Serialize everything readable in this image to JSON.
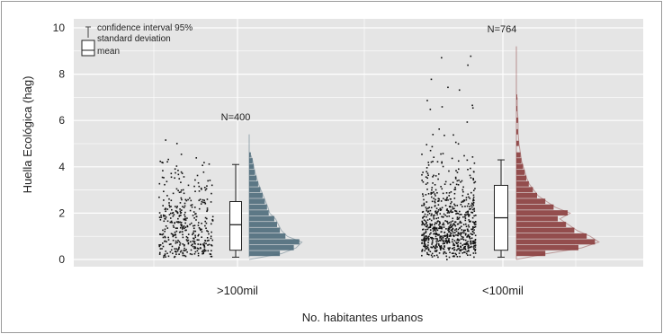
{
  "chart_data": {
    "type": "scatter",
    "xlabel": "No. habitantes urbanos",
    "ylabel": "Huella Ecológica (hag)",
    "ylim": [
      0,
      10
    ],
    "yticks": [
      0,
      2,
      4,
      6,
      8,
      10
    ],
    "grid": true,
    "legend": {
      "placement": "top-left",
      "items": [
        "confidence interval 95%",
        "standard deviation",
        "mean"
      ]
    },
    "categories": [
      ">100mil",
      "<100mil"
    ],
    "groups": [
      {
        "category": ">100mil",
        "n_label": "N=400",
        "color": "#4d6a7a",
        "box": {
          "whisker_low": 0.1,
          "q1": 0.4,
          "median": 1.5,
          "q3": 2.5,
          "whisker_high": 4.1
        },
        "point_range": [
          0.1,
          5.4
        ],
        "histogram": {
          "bin_width": 0.25,
          "bins": [
            [
              0.25,
              0.55
            ],
            [
              0.5,
              0.8
            ],
            [
              0.75,
              0.9
            ],
            [
              1.0,
              0.65
            ],
            [
              1.25,
              0.55
            ],
            [
              1.5,
              0.5
            ],
            [
              1.75,
              0.45
            ],
            [
              2.0,
              0.35
            ],
            [
              2.25,
              0.32
            ],
            [
              2.5,
              0.28
            ],
            [
              2.75,
              0.24
            ],
            [
              3.0,
              0.2
            ],
            [
              3.25,
              0.16
            ],
            [
              3.5,
              0.13
            ],
            [
              3.75,
              0.1
            ],
            [
              4.0,
              0.08
            ],
            [
              4.25,
              0.06
            ],
            [
              4.5,
              0.03
            ]
          ]
        }
      },
      {
        "category": "<100mil",
        "n_label": "N=764",
        "color": "#8a3c3c",
        "box": {
          "whisker_low": 0.1,
          "q1": 0.4,
          "median": 1.8,
          "q3": 3.2,
          "whisker_high": 4.3
        },
        "point_range": [
          0.0,
          9.2
        ],
        "histogram": {
          "bin_width": 0.25,
          "bins": [
            [
              0.25,
              0.35
            ],
            [
              0.5,
              0.75
            ],
            [
              0.75,
              0.95
            ],
            [
              1.0,
              0.85
            ],
            [
              1.25,
              0.7
            ],
            [
              1.5,
              0.6
            ],
            [
              1.75,
              0.5
            ],
            [
              2.0,
              0.62
            ],
            [
              2.25,
              0.45
            ],
            [
              2.5,
              0.35
            ],
            [
              2.75,
              0.25
            ],
            [
              3.0,
              0.2
            ],
            [
              3.25,
              0.15
            ],
            [
              3.5,
              0.12
            ],
            [
              3.75,
              0.1
            ],
            [
              4.0,
              0.08
            ],
            [
              4.25,
              0.06
            ],
            [
              4.5,
              0.05
            ],
            [
              5.0,
              0.03
            ],
            [
              5.5,
              0.02
            ],
            [
              6.0,
              0.02
            ],
            [
              6.5,
              0.01
            ],
            [
              7.0,
              0.01
            ]
          ]
        }
      }
    ]
  }
}
